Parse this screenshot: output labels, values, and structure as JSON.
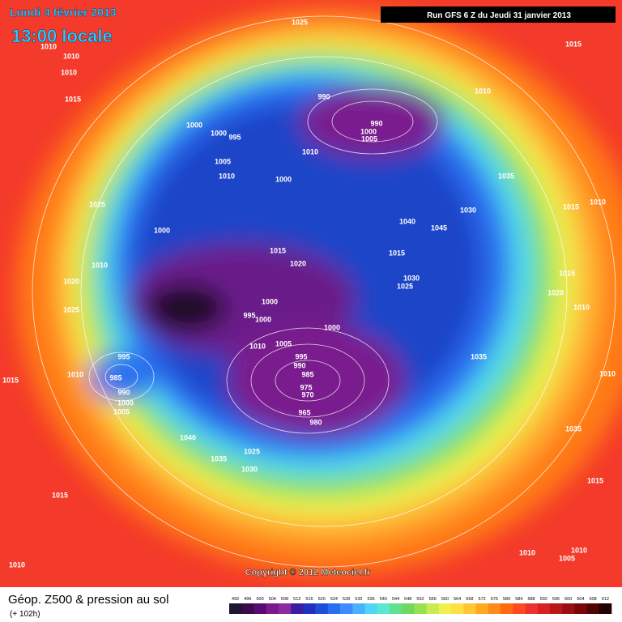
{
  "header": {
    "date": "Lundi 4 février 2013",
    "time": "13:00 locale",
    "run": "Run GFS 6 Z du Jeudi 31 janvier 2013"
  },
  "copyright": "Copyright © 2012 Meteociel.fr",
  "footer": {
    "title": "Géop. Z500 & pression au sol",
    "lead": "(+ 102h)"
  },
  "pressure_labels": [
    "1025",
    "1015",
    "1010",
    "1010",
    "1010",
    "1015",
    "990",
    "1010",
    "990",
    "1000",
    "1005",
    "1000",
    "1000",
    "995",
    "1010",
    "1005",
    "1010",
    "1000",
    "1035",
    "1025",
    "1015",
    "1010",
    "1030",
    "1040",
    "1045",
    "1000",
    "1015",
    "1020",
    "1015",
    "1010",
    "1030",
    "1025",
    "1020",
    "1015",
    "1020",
    "1010",
    "1000",
    "995",
    "1000",
    "1025",
    "1000",
    "1010",
    "1005",
    "995",
    "1035",
    "995",
    "990",
    "985",
    "1010",
    "985",
    "1015",
    "1010",
    "975",
    "970",
    "990",
    "1000",
    "1005",
    "965",
    "980",
    "1035",
    "1040",
    "1025",
    "1035",
    "1030",
    "1015",
    "1015",
    "1010",
    "1010",
    "1010",
    "1005"
  ],
  "colorbar": {
    "ticks": [
      492,
      496,
      500,
      504,
      508,
      512,
      516,
      520,
      524,
      528,
      532,
      536,
      540,
      544,
      548,
      552,
      556,
      560,
      564,
      568,
      572,
      576,
      580,
      584,
      588,
      592,
      596,
      600,
      604,
      608,
      612
    ],
    "colors": [
      "#1e1430",
      "#3a0a4a",
      "#5a0a6e",
      "#7a1a8e",
      "#8c2aa0",
      "#3c1ca0",
      "#2030c0",
      "#1f4ed8",
      "#2a6ef0",
      "#3c8cff",
      "#4ab0ff",
      "#50d4f8",
      "#5ae8d0",
      "#60e090",
      "#70d860",
      "#98e050",
      "#c8ec50",
      "#f0f050",
      "#ffe040",
      "#ffc830",
      "#ffa820",
      "#ff8a18",
      "#ff6a10",
      "#ff4a20",
      "#f03030",
      "#d82020",
      "#b81818",
      "#981010",
      "#780808",
      "#500404",
      "#200000"
    ]
  }
}
